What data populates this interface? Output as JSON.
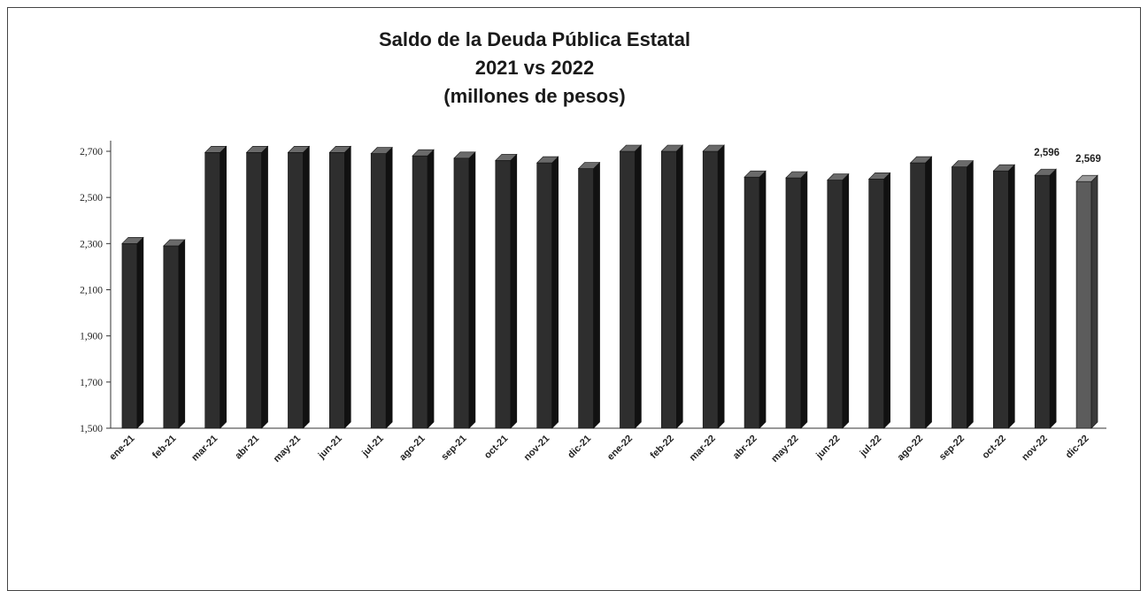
{
  "chart_data": {
    "type": "bar",
    "title_lines": [
      "Saldo de la Deuda Pública Estatal",
      "2021 vs 2022",
      "(millones de pesos)"
    ],
    "categories": [
      "ene-21",
      "feb-21",
      "mar-21",
      "abr-21",
      "may-21",
      "jun-21",
      "jul-21",
      "ago-21",
      "sep-21",
      "oct-21",
      "nov-21",
      "dic-21",
      "ene-22",
      "feb-22",
      "mar-22",
      "abr-22",
      "may-22",
      "jun-22",
      "jul-22",
      "ago-22",
      "sep-22",
      "oct-22",
      "nov-22",
      "dic-22"
    ],
    "values": [
      2300,
      2290,
      2695,
      2695,
      2695,
      2695,
      2690,
      2680,
      2670,
      2660,
      2650,
      2625,
      2700,
      2700,
      2700,
      2588,
      2585,
      2575,
      2580,
      2650,
      2632,
      2615,
      2596,
      2569
    ],
    "data_labels": [
      {
        "category": "nov-22",
        "text": "2,596"
      },
      {
        "category": "dic-22",
        "text": "2,569"
      }
    ],
    "ylim": [
      1500,
      2700
    ],
    "yticks": [
      1500,
      1700,
      1900,
      2100,
      2300,
      2500,
      2700
    ],
    "ytick_labels": [
      "1,500",
      "1,700",
      "1,900",
      "2,100",
      "2,300",
      "2,500",
      "2,700"
    ],
    "xlabel": "",
    "ylabel": "",
    "grid": false,
    "colors": {
      "bar_front": "#2e2e2e",
      "bar_side": "#111111",
      "bar_top": "#6a6a6a",
      "last_bar_front": "#5c5c5c",
      "last_bar_side": "#3a3a3a",
      "last_bar_top": "#9a9a9a",
      "axis": "#333333"
    }
  }
}
